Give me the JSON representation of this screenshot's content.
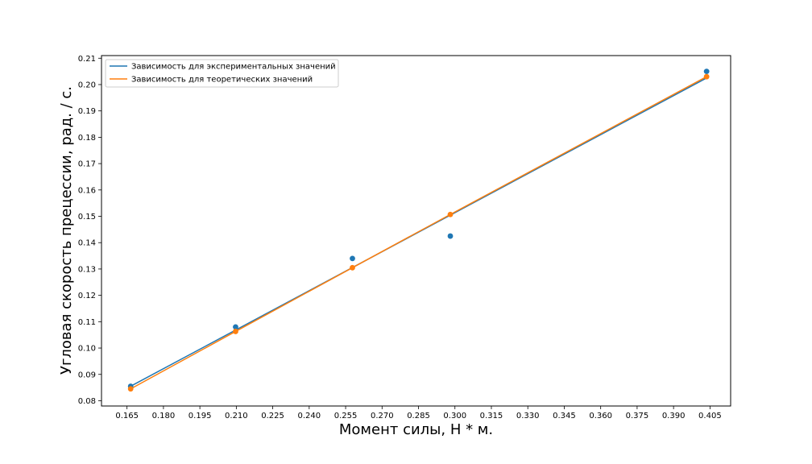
{
  "chart_data": {
    "type": "scatter",
    "xlabel": "Момент силы, Н * м.",
    "ylabel": "Угловая скорость прецессии, рад. / с.",
    "xlim": [
      0.1545,
      0.4135
    ],
    "ylim": [
      0.078,
      0.211
    ],
    "x_ticks": [
      "0.165",
      "0.180",
      "0.195",
      "0.210",
      "0.225",
      "0.240",
      "0.255",
      "0.270",
      "0.285",
      "0.300",
      "0.315",
      "0.330",
      "0.345",
      "0.360",
      "0.375",
      "0.390",
      "0.405"
    ],
    "y_ticks": [
      "0.08",
      "0.09",
      "0.10",
      "0.11",
      "0.12",
      "0.13",
      "0.14",
      "0.15",
      "0.16",
      "0.17",
      "0.18",
      "0.19",
      "0.20",
      "0.21"
    ],
    "legend_position": "upper left",
    "series": [
      {
        "name": "Зависимость для экспериментальных значений",
        "color": "#1f77b4",
        "points": {
          "x": [
            0.1665,
            0.2097,
            0.2578,
            0.2981,
            0.4036
          ],
          "y": [
            0.0855,
            0.108,
            0.134,
            0.1425,
            0.205
          ]
        },
        "line": {
          "x": [
            0.1665,
            0.4036
          ],
          "y": [
            0.0855,
            0.2025
          ]
        }
      },
      {
        "name": "Зависимость для теоретических значений",
        "color": "#ff7f0e",
        "points": {
          "x": [
            0.1665,
            0.2097,
            0.2578,
            0.2981,
            0.4036
          ],
          "y": [
            0.0845,
            0.1063,
            0.1305,
            0.1507,
            0.203
          ]
        },
        "line": {
          "x": [
            0.1665,
            0.2097,
            0.2578,
            0.2981,
            0.4036
          ],
          "y": [
            0.0845,
            0.1063,
            0.1305,
            0.1507,
            0.203
          ]
        }
      }
    ]
  }
}
